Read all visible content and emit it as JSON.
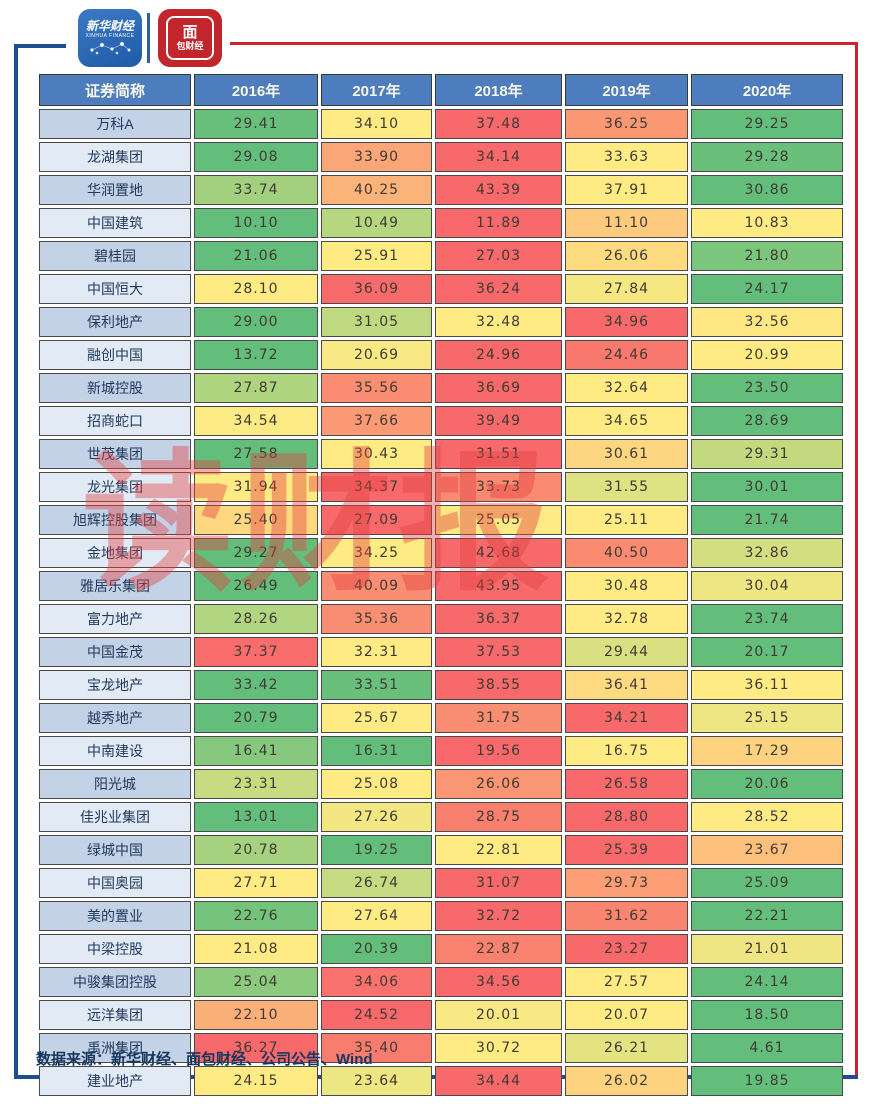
{
  "brand": {
    "xinhua": {
      "name": "新华财经",
      "sub": "XINHUA FINANCE"
    },
    "mianbao": {
      "char": "面",
      "rest": "包财经"
    }
  },
  "watermark": "读财报",
  "footer": "数据来源：新华财经、面包财经、公司公告、Wind",
  "colors": {
    "header_bg": "#4d7dbe",
    "frame_blue": "#1f4e8f",
    "frame_red": "#c9252c",
    "label_dark": "#c3d2e7",
    "label_light": "#e2eaf5"
  },
  "chart_data": {
    "type": "heatmap",
    "title": "",
    "columns": [
      "证券简称",
      "2016年",
      "2017年",
      "2018年",
      "2019年",
      "2020年"
    ],
    "color_scale": {
      "min": "#63BE7B",
      "mid": "#FFEB84",
      "max": "#F8696B",
      "midpoint": "row median"
    },
    "rows": [
      {
        "name": "万科A",
        "values": [
          29.41,
          34.1,
          37.48,
          36.25,
          29.25
        ]
      },
      {
        "name": "龙湖集团",
        "values": [
          29.08,
          33.9,
          34.14,
          33.63,
          29.28
        ]
      },
      {
        "name": "华润置地",
        "values": [
          33.74,
          40.25,
          43.39,
          37.91,
          30.86
        ]
      },
      {
        "name": "中国建筑",
        "values": [
          10.1,
          10.49,
          11.89,
          11.1,
          10.83
        ]
      },
      {
        "name": "碧桂园",
        "values": [
          21.06,
          25.91,
          27.03,
          26.06,
          21.8
        ]
      },
      {
        "name": "中国恒大",
        "values": [
          28.1,
          36.09,
          36.24,
          27.84,
          24.17
        ]
      },
      {
        "name": "保利地产",
        "values": [
          29.0,
          31.05,
          32.48,
          34.96,
          32.56
        ]
      },
      {
        "name": "融创中国",
        "values": [
          13.72,
          20.69,
          24.96,
          24.46,
          20.99
        ]
      },
      {
        "name": "新城控股",
        "values": [
          27.87,
          35.56,
          36.69,
          32.64,
          23.5
        ]
      },
      {
        "name": "招商蛇口",
        "values": [
          34.54,
          37.66,
          39.49,
          34.65,
          28.69
        ]
      },
      {
        "name": "世茂集团",
        "values": [
          27.58,
          30.43,
          31.51,
          30.61,
          29.31
        ]
      },
      {
        "name": "龙光集团",
        "values": [
          31.94,
          34.37,
          33.73,
          31.55,
          30.01
        ]
      },
      {
        "name": "旭辉控股集团",
        "values": [
          25.4,
          27.09,
          25.05,
          25.11,
          21.74
        ]
      },
      {
        "name": "金地集团",
        "values": [
          29.27,
          34.25,
          42.68,
          40.5,
          32.86
        ]
      },
      {
        "name": "雅居乐集团",
        "values": [
          26.49,
          40.09,
          43.95,
          30.48,
          30.04
        ]
      },
      {
        "name": "富力地产",
        "values": [
          28.26,
          35.36,
          36.37,
          32.78,
          23.74
        ]
      },
      {
        "name": "中国金茂",
        "values": [
          37.37,
          32.31,
          37.53,
          29.44,
          20.17
        ]
      },
      {
        "name": "宝龙地产",
        "values": [
          33.42,
          33.51,
          38.55,
          36.41,
          36.11
        ]
      },
      {
        "name": "越秀地产",
        "values": [
          20.79,
          25.67,
          31.75,
          34.21,
          25.15
        ]
      },
      {
        "name": "中南建设",
        "values": [
          16.41,
          16.31,
          19.56,
          16.75,
          17.29
        ]
      },
      {
        "name": "阳光城",
        "values": [
          23.31,
          25.08,
          26.06,
          26.58,
          20.06
        ]
      },
      {
        "name": "佳兆业集团",
        "values": [
          13.01,
          27.26,
          28.75,
          28.8,
          28.52
        ]
      },
      {
        "name": "绿城中国",
        "values": [
          20.78,
          19.25,
          22.81,
          25.39,
          23.67
        ]
      },
      {
        "name": "中国奥园",
        "values": [
          27.71,
          26.74,
          31.07,
          29.73,
          25.09
        ]
      },
      {
        "name": "美的置业",
        "values": [
          22.76,
          27.64,
          32.72,
          31.62,
          22.21
        ]
      },
      {
        "name": "中梁控股",
        "values": [
          21.08,
          20.39,
          22.87,
          23.27,
          21.01
        ]
      },
      {
        "name": "中骏集团控股",
        "values": [
          25.04,
          34.06,
          34.56,
          27.57,
          24.14
        ]
      },
      {
        "name": "远洋集团",
        "values": [
          22.1,
          24.52,
          20.01,
          20.07,
          18.5
        ]
      },
      {
        "name": "禹洲集团",
        "values": [
          36.27,
          35.4,
          30.72,
          26.21,
          4.61
        ]
      },
      {
        "name": "建业地产",
        "values": [
          24.15,
          23.64,
          34.44,
          26.02,
          19.85
        ]
      }
    ]
  }
}
